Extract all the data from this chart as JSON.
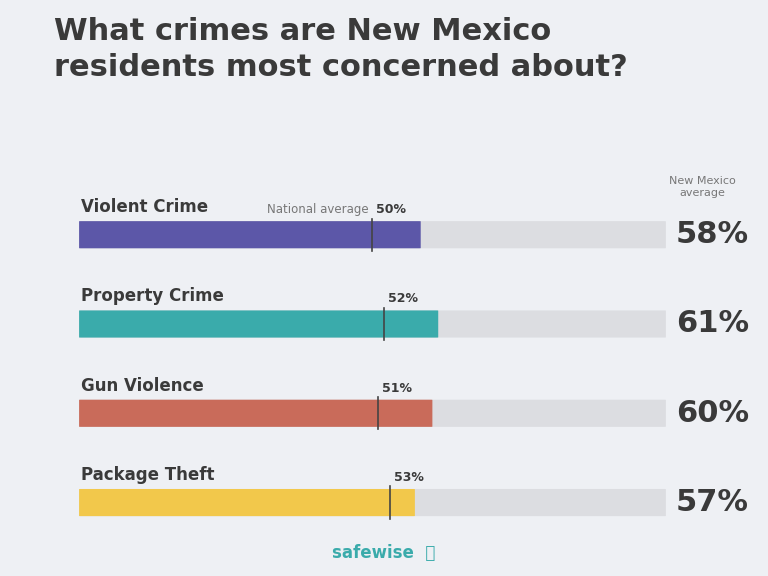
{
  "title": "What crimes are New Mexico\nresidents most concerned about?",
  "categories": [
    "Violent Crime",
    "Property Crime",
    "Gun Violence",
    "Package Theft"
  ],
  "nm_values": [
    58,
    61,
    60,
    57
  ],
  "national_values": [
    50,
    52,
    51,
    53
  ],
  "bar_colors": [
    "#5C57A8",
    "#3AABAB",
    "#C96B5A",
    "#F2C84B"
  ],
  "bg_color": "#EEF0F4",
  "bar_bg_color": "#DCDDE1",
  "nm_label_header": "New Mexico\naverage",
  "national_label": "National average",
  "safewise_color": "#3AABAB",
  "title_fontsize": 22,
  "category_fontsize": 12,
  "value_fontsize": 22,
  "national_fontsize": 8.5,
  "nat_pct_fontsize": 9,
  "title_color": "#3A3A3A",
  "value_color": "#3A3A3A",
  "label_color": "#3A3A3A",
  "header_color": "#777777"
}
